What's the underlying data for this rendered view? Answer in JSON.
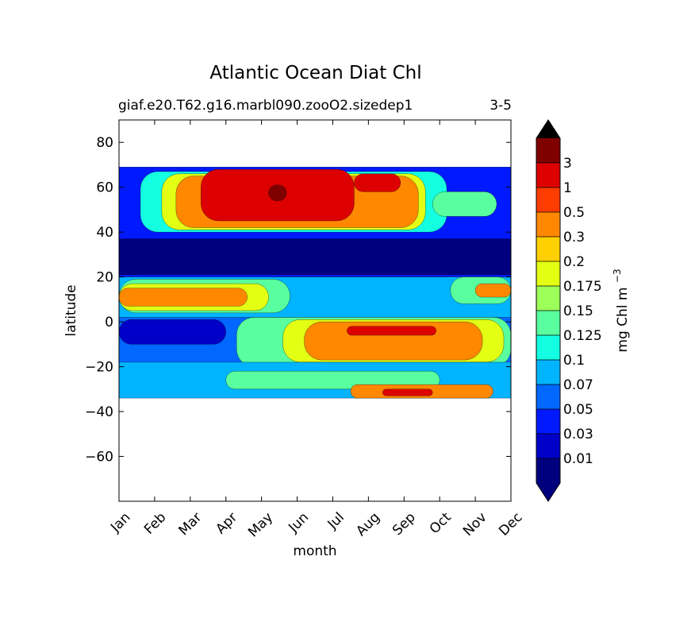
{
  "chart_data": {
    "type": "heatmap",
    "title": "Atlantic Ocean Diat Chl",
    "subtitle_left": "giaf.e20.T62.g16.marbl090.zooO2.sizedep1",
    "subtitle_right": "3-5",
    "xlabel": "month",
    "ylabel": "latitude",
    "x_ticks": [
      "Jan",
      "Feb",
      "Mar",
      "Apr",
      "May",
      "Jun",
      "Jul",
      "Aug",
      "Sep",
      "Oct",
      "Nov",
      "Dec"
    ],
    "y_ticks": [
      "80",
      "60",
      "40",
      "20",
      "0",
      "−20",
      "−40",
      "−60"
    ],
    "y_tick_values": [
      80,
      60,
      40,
      20,
      0,
      -20,
      -40,
      -60
    ],
    "ylim": [
      -80,
      90
    ],
    "xlim": [
      1,
      12
    ],
    "data_extent_lat": [
      -34,
      69
    ],
    "colorbar": {
      "label": "mg Chl m",
      "label_exponent": "−3",
      "levels": [
        "0.01",
        "0.03",
        "0.05",
        "0.07",
        "0.1",
        "0.125",
        "0.15",
        "0.175",
        "0.2",
        "0.3",
        "0.5",
        "1",
        "3"
      ],
      "colors": [
        "#00007f",
        "#0000c8",
        "#0019ff",
        "#0068ff",
        "#00b4ff",
        "#14ffe2",
        "#59ff9e",
        "#9dff59",
        "#e2ff14",
        "#ffd000",
        "#ff8800",
        "#ff3c00",
        "#dd0000",
        "#800000"
      ],
      "extend_low_color": "#00007f",
      "extend_high_color": "#000000"
    },
    "contours": [
      {
        "name": "band-n-background",
        "lat": [
          20,
          69
        ],
        "month": [
          1,
          12
        ],
        "level_index": 2
      },
      {
        "name": "band-n-dark-20-40",
        "lat": [
          21,
          37
        ],
        "month": [
          1,
          12
        ],
        "level_index": 0
      },
      {
        "name": "band-n-bloom-cyan",
        "lat": [
          40,
          67
        ],
        "month": [
          1.6,
          10.2
        ],
        "level_index": 5
      },
      {
        "name": "band-n-bloom-yellow",
        "lat": [
          41,
          66
        ],
        "month": [
          2.2,
          9.6
        ],
        "level_index": 8
      },
      {
        "name": "band-n-bloom-orange",
        "lat": [
          42,
          65
        ],
        "month": [
          2.6,
          9.4
        ],
        "level_index": 10
      },
      {
        "name": "band-n-bloom-red",
        "lat": [
          45,
          68
        ],
        "month": [
          3.3,
          7.6
        ],
        "level_index": 12
      },
      {
        "name": "band-n-bloom-max",
        "lat": [
          54,
          61
        ],
        "month": [
          5.2,
          5.7
        ],
        "level_index": 13
      },
      {
        "name": "band-n-late-red",
        "lat": [
          58,
          66
        ],
        "month": [
          7.6,
          8.9
        ],
        "level_index": 12
      },
      {
        "name": "band-n-east-green",
        "lat": [
          47,
          58
        ],
        "month": [
          9.8,
          11.6
        ],
        "level_index": 6
      },
      {
        "name": "band-trop-n-bg",
        "lat": [
          2,
          20
        ],
        "month": [
          1,
          12
        ],
        "level_index": 4
      },
      {
        "name": "band-trop-n-west",
        "lat": [
          4,
          19
        ],
        "month": [
          1,
          5.8
        ],
        "level_index": 6
      },
      {
        "name": "band-trop-n-west-yellow",
        "lat": [
          5,
          17
        ],
        "month": [
          1,
          5.2
        ],
        "level_index": 8
      },
      {
        "name": "band-trop-n-west-orange",
        "lat": [
          7,
          15
        ],
        "month": [
          1,
          4.6
        ],
        "level_index": 10
      },
      {
        "name": "band-trop-n-east",
        "lat": [
          8,
          20
        ],
        "month": [
          10.3,
          12
        ],
        "level_index": 6
      },
      {
        "name": "band-trop-n-east-orange",
        "lat": [
          11,
          17
        ],
        "month": [
          11.0,
          12
        ],
        "level_index": 10
      },
      {
        "name": "band-eq-dark",
        "lat": [
          -10,
          1
        ],
        "month": [
          1,
          4
        ],
        "level_index": 1
      },
      {
        "name": "band-eq-upwelling",
        "lat": [
          -20,
          2
        ],
        "month": [
          4.3,
          12
        ],
        "level_index": 6
      },
      {
        "name": "band-eq-upwelling-yellow",
        "lat": [
          -18,
          1
        ],
        "month": [
          5.6,
          11.8
        ],
        "level_index": 8
      },
      {
        "name": "band-eq-upwelling-orange",
        "lat": [
          -17,
          0
        ],
        "month": [
          6.2,
          11.2
        ],
        "level_index": 10
      },
      {
        "name": "band-eq-upwelling-red",
        "lat": [
          -6,
          -2
        ],
        "month": [
          7.4,
          9.9
        ],
        "level_index": 12
      },
      {
        "name": "band-s-subtrop",
        "lat": [
          -34,
          -18
        ],
        "month": [
          1,
          12
        ],
        "level_index": 4
      },
      {
        "name": "band-s-subtrop-green",
        "lat": [
          -30,
          -22
        ],
        "month": [
          4,
          10
        ],
        "level_index": 6
      },
      {
        "name": "band-s-orange",
        "lat": [
          -34,
          -28
        ],
        "month": [
          7.5,
          11.5
        ],
        "level_index": 10
      },
      {
        "name": "band-s-red",
        "lat": [
          -33,
          -30
        ],
        "month": [
          8.4,
          9.8
        ],
        "level_index": 12
      }
    ]
  }
}
